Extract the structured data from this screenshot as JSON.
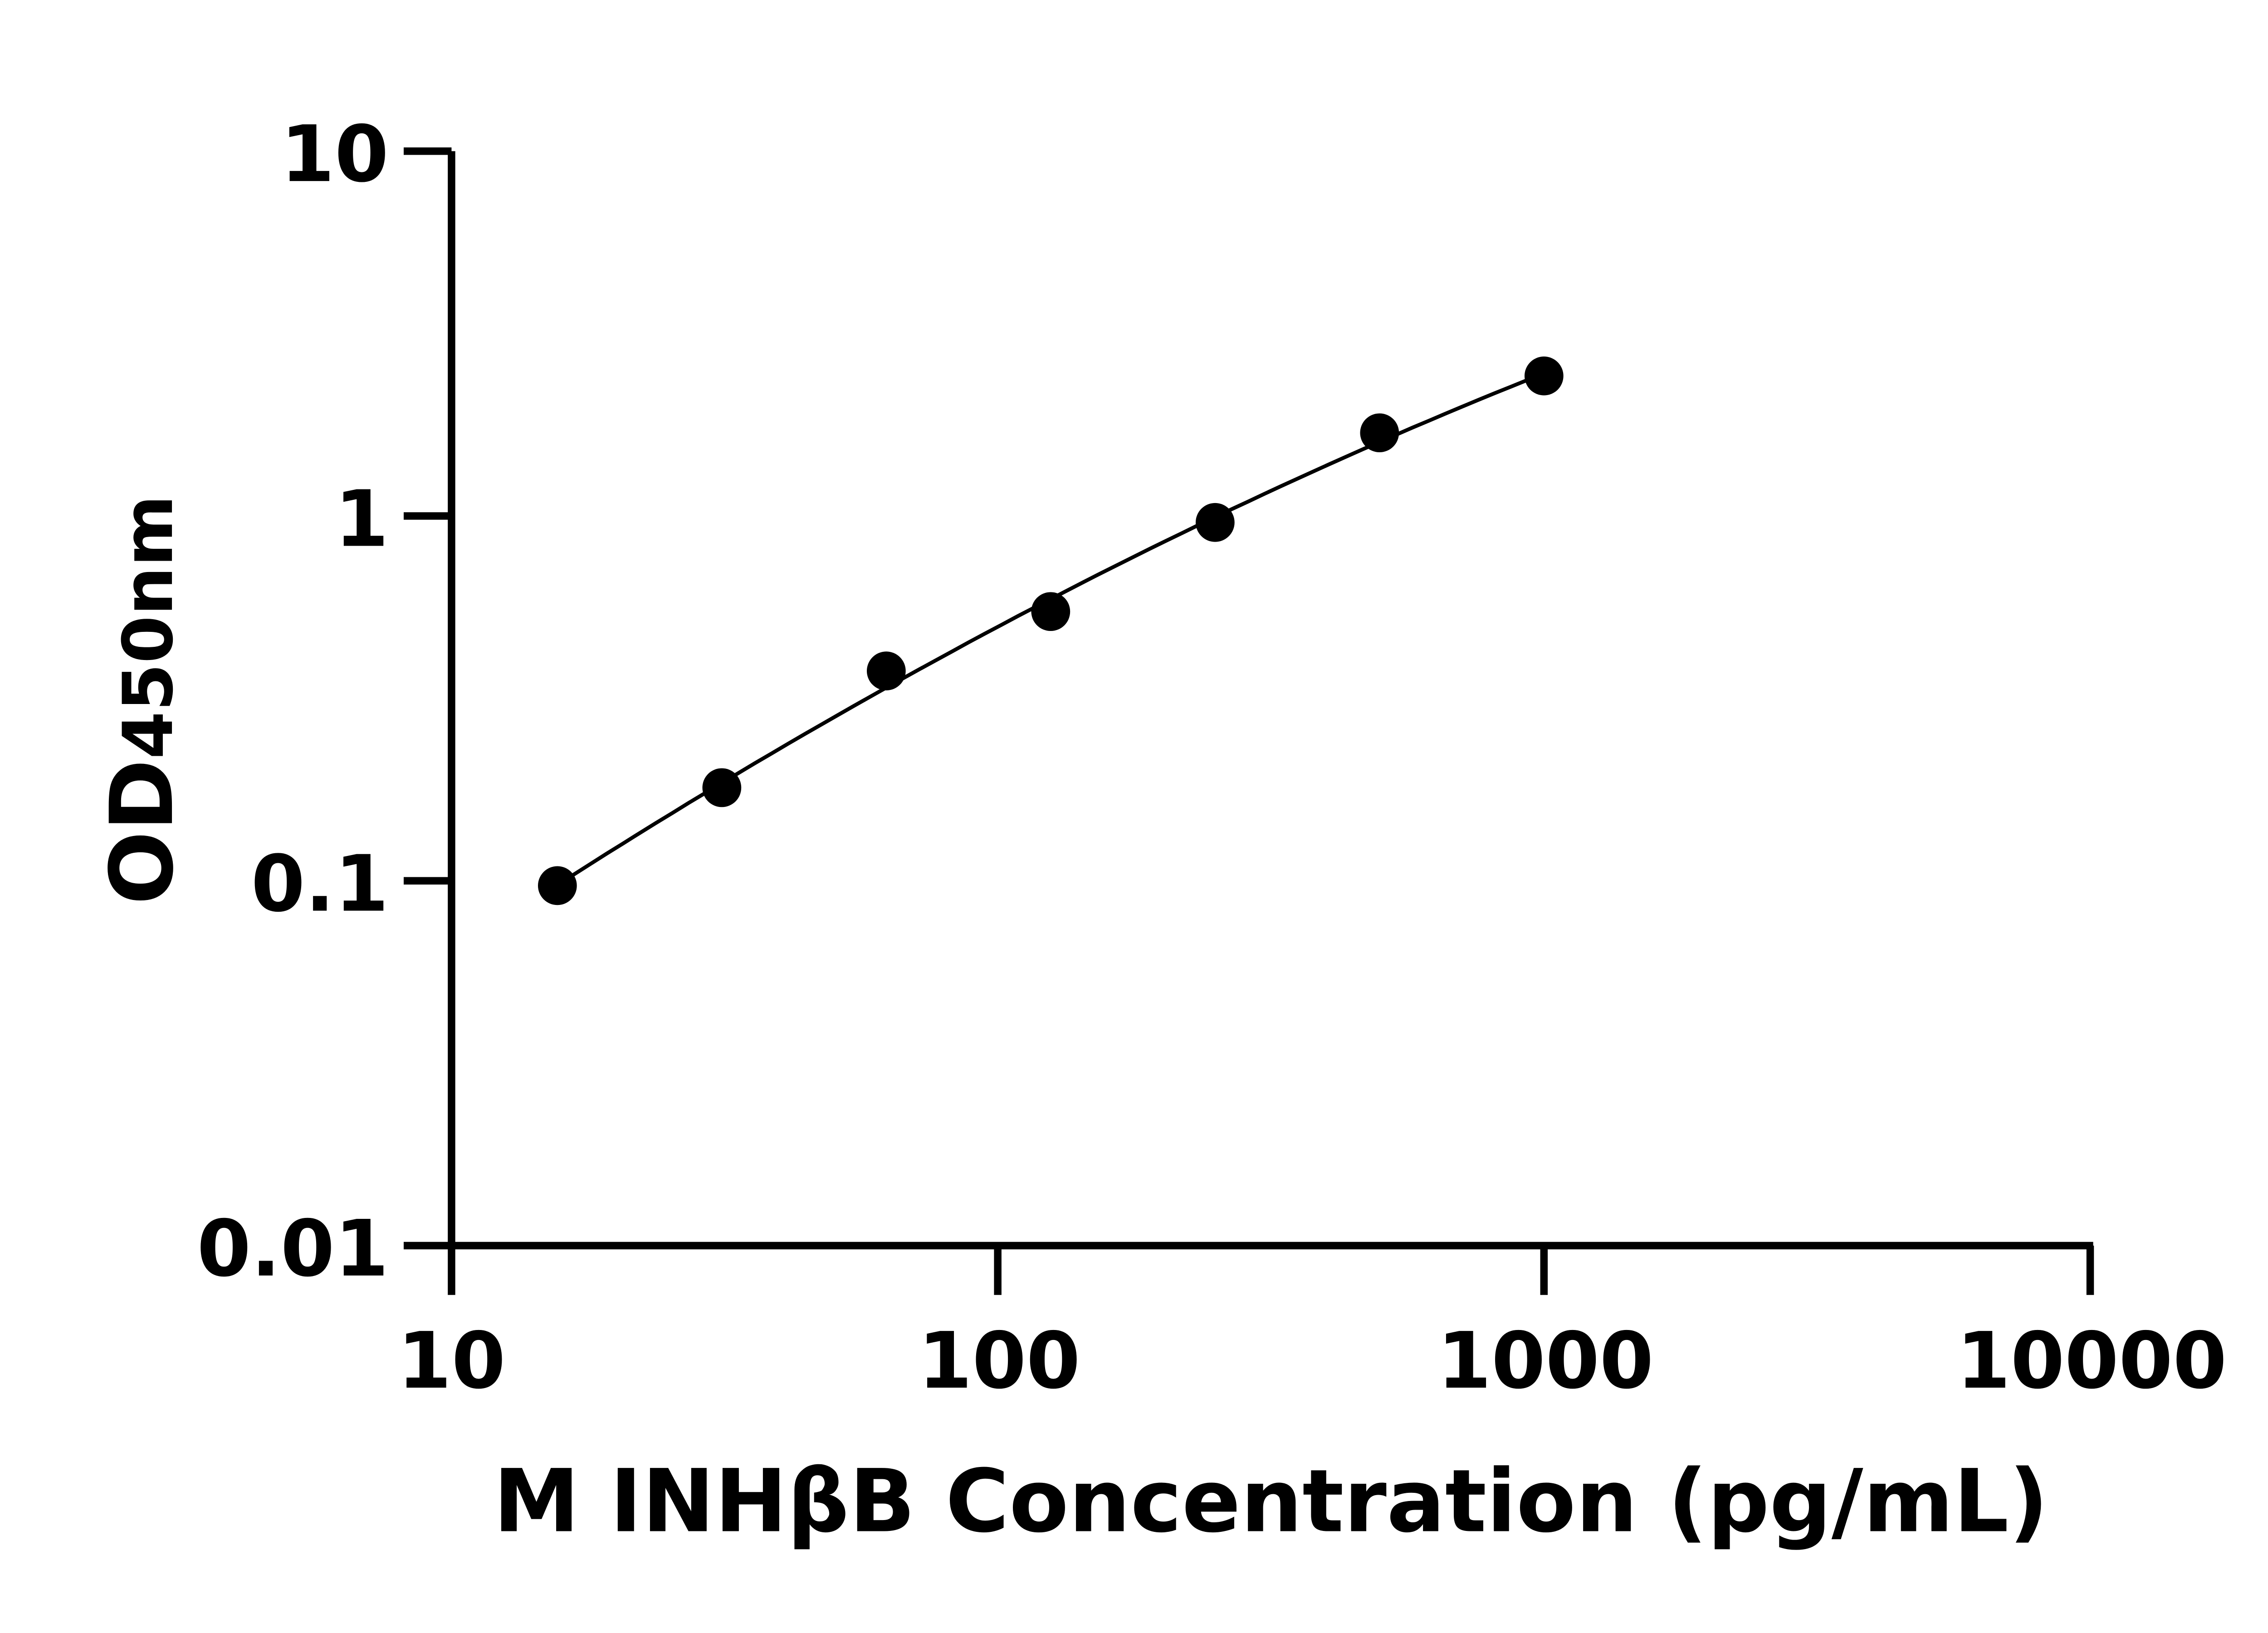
{
  "chart_data": {
    "type": "scatter",
    "title": "",
    "xlabel": "M INHβB Concentration (pg/mL)",
    "ylabel": {
      "main": "OD",
      "sub": "450nm"
    },
    "x_scale": "log",
    "y_scale": "log",
    "xlim": [
      10,
      10000
    ],
    "ylim": [
      0.01,
      10
    ],
    "x_ticks": [
      "10",
      "100",
      "1000",
      "10000"
    ],
    "y_ticks": [
      "0.01",
      "0.1",
      "1",
      "10"
    ],
    "grid": false,
    "legend": "none",
    "series": [
      {
        "x": [
          15.625,
          31.25,
          62.5,
          125,
          250,
          500,
          1000
        ],
        "y": [
          0.097,
          0.18,
          0.376,
          0.547,
          0.96,
          1.69,
          2.42
        ],
        "color": "#000000",
        "fit_curve": true
      }
    ]
  }
}
